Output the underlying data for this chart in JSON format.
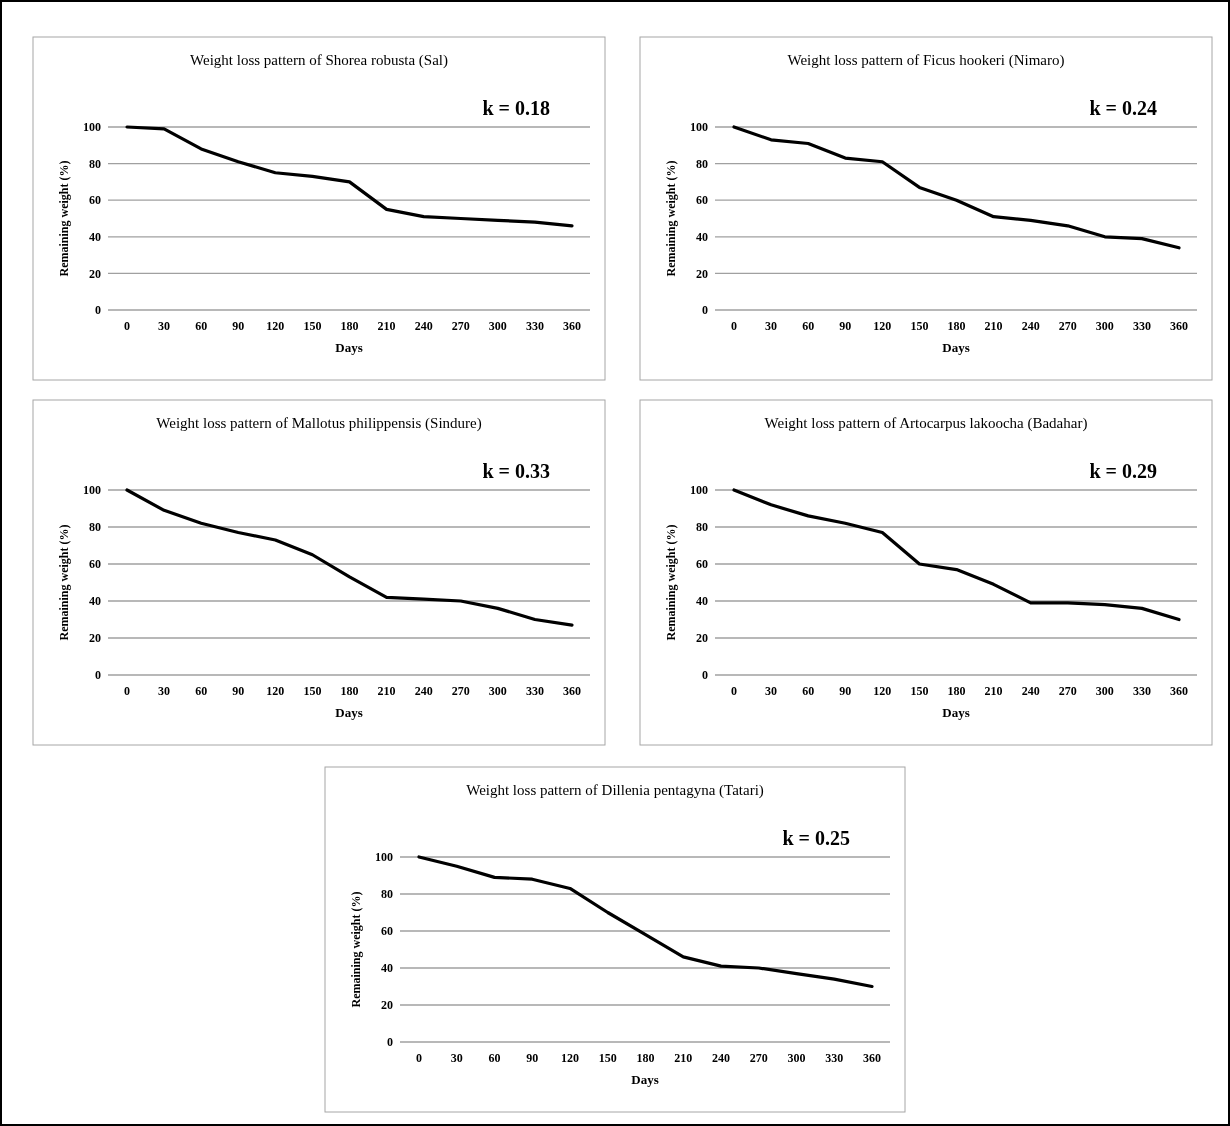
{
  "chart_data": [
    {
      "type": "line",
      "title": "Weight  loss pattern of Shorea robusta (Sal)",
      "xlabel": "Days",
      "ylabel": "Remaining weight (%)",
      "categories": [
        "0",
        "30",
        "60",
        "90",
        "120",
        "150",
        "180",
        "210",
        "240",
        "270",
        "300",
        "330",
        "360"
      ],
      "series": [
        {
          "color": "#000000",
          "values": [
            100,
            99,
            88,
            81,
            75,
            73,
            70,
            55,
            51,
            50,
            49,
            48,
            46
          ]
        }
      ],
      "ylim": [
        0,
        100
      ],
      "yticks": [
        0,
        20,
        40,
        60,
        80,
        100
      ],
      "grid": "y",
      "annotations": [
        "k = 0.18"
      ]
    },
    {
      "type": "line",
      "title": "Weight  loss pattern of Ficus hookeri (Nimaro)",
      "xlabel": "Days",
      "ylabel": "Remaining weight (%)",
      "categories": [
        "0",
        "30",
        "60",
        "90",
        "120",
        "150",
        "180",
        "210",
        "240",
        "270",
        "300",
        "330",
        "360"
      ],
      "series": [
        {
          "color": "#000000",
          "values": [
            100,
            93,
            91,
            83,
            81,
            67,
            60,
            51,
            49,
            46,
            40,
            39,
            34
          ]
        }
      ],
      "ylim": [
        0,
        100
      ],
      "yticks": [
        0,
        20,
        40,
        60,
        80,
        100
      ],
      "grid": "y",
      "annotations": [
        "k = 0.24"
      ]
    },
    {
      "type": "line",
      "title": "Weight  loss pattern of Mallotus philippensis (Sindure)",
      "xlabel": "Days",
      "ylabel": "Remaining weight (%)",
      "categories": [
        "0",
        "30",
        "60",
        "90",
        "120",
        "150",
        "180",
        "210",
        "240",
        "270",
        "300",
        "330",
        "360"
      ],
      "series": [
        {
          "color": "#000000",
          "values": [
            100,
            89,
            82,
            77,
            73,
            65,
            53,
            42,
            41,
            40,
            36,
            30,
            27
          ]
        }
      ],
      "ylim": [
        0,
        100
      ],
      "yticks": [
        0,
        20,
        40,
        60,
        80,
        100
      ],
      "grid": "y",
      "annotations": [
        "k = 0.33"
      ]
    },
    {
      "type": "line",
      "title": "Weight  loss pattern of Artocarpus lakoocha (Badahar)",
      "xlabel": "Days",
      "ylabel": "Remaining weight (%)",
      "categories": [
        "0",
        "30",
        "60",
        "90",
        "120",
        "150",
        "180",
        "210",
        "240",
        "270",
        "300",
        "330",
        "360"
      ],
      "series": [
        {
          "color": "#000000",
          "values": [
            100,
            92,
            86,
            82,
            77,
            60,
            57,
            49,
            39,
            39,
            38,
            36,
            30
          ]
        }
      ],
      "ylim": [
        0,
        100
      ],
      "yticks": [
        0,
        20,
        40,
        60,
        80,
        100
      ],
      "grid": "y",
      "annotations": [
        "k = 0.29"
      ]
    },
    {
      "type": "line",
      "title": "Weight  loss pattern of Dillenia pentagyna (Tatari)",
      "xlabel": "Days",
      "ylabel": "Remaining weight (%)",
      "categories": [
        "0",
        "30",
        "60",
        "90",
        "120",
        "150",
        "180",
        "210",
        "240",
        "270",
        "300",
        "330",
        "360"
      ],
      "series": [
        {
          "color": "#000000",
          "values": [
            100,
            95,
            89,
            88,
            83,
            70,
            58,
            46,
            41,
            40,
            37,
            34,
            30
          ]
        }
      ],
      "ylim": [
        0,
        100
      ],
      "yticks": [
        0,
        20,
        40,
        60,
        80,
        100
      ],
      "grid": "y",
      "annotations": [
        "k = 0.25"
      ]
    }
  ]
}
